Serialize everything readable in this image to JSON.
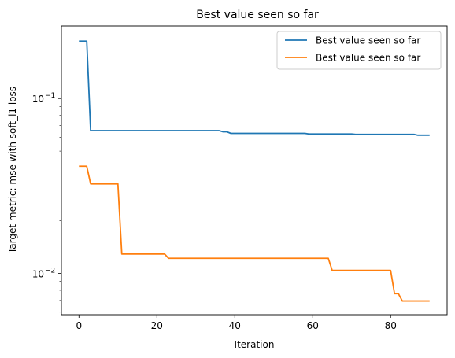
{
  "chart_data": {
    "type": "line",
    "title": "Best value seen so far",
    "xlabel": "Iteration",
    "ylabel": "Target metric: mse with soft_l1 loss",
    "yscale": "log",
    "xlim": [
      -4.5,
      94.5
    ],
    "ylim": [
      0.0058,
      0.26
    ],
    "x_ticks": [
      0,
      20,
      40,
      60,
      80
    ],
    "y_major_ticks": [
      {
        "value": 0.01,
        "base": "10",
        "exp": "−2"
      },
      {
        "value": 0.1,
        "base": "10",
        "exp": "−1"
      }
    ],
    "grid": false,
    "legend_position": "top-right",
    "series": [
      {
        "name": "Best value seen so far",
        "color": "#1f77b4",
        "points": [
          [
            0,
            0.213
          ],
          [
            2,
            0.213
          ],
          [
            3,
            0.0655
          ],
          [
            36,
            0.0655
          ],
          [
            37,
            0.0645
          ],
          [
            38,
            0.0645
          ],
          [
            39,
            0.0632
          ],
          [
            58,
            0.0632
          ],
          [
            59,
            0.0627
          ],
          [
            70,
            0.0627
          ],
          [
            71,
            0.0624
          ],
          [
            86,
            0.0624
          ],
          [
            87,
            0.0617
          ],
          [
            90,
            0.0617
          ]
        ]
      },
      {
        "name": "Best value seen so far",
        "color": "#ff7f0e",
        "points": [
          [
            0,
            0.041
          ],
          [
            2,
            0.041
          ],
          [
            3,
            0.0325
          ],
          [
            10,
            0.0325
          ],
          [
            11,
            0.0129
          ],
          [
            22,
            0.0129
          ],
          [
            23,
            0.0122
          ],
          [
            64,
            0.0122
          ],
          [
            65,
            0.0104
          ],
          [
            80,
            0.0104
          ],
          [
            81,
            0.00765
          ],
          [
            82,
            0.00765
          ],
          [
            83,
            0.00695
          ],
          [
            90,
            0.00695
          ]
        ]
      }
    ]
  }
}
